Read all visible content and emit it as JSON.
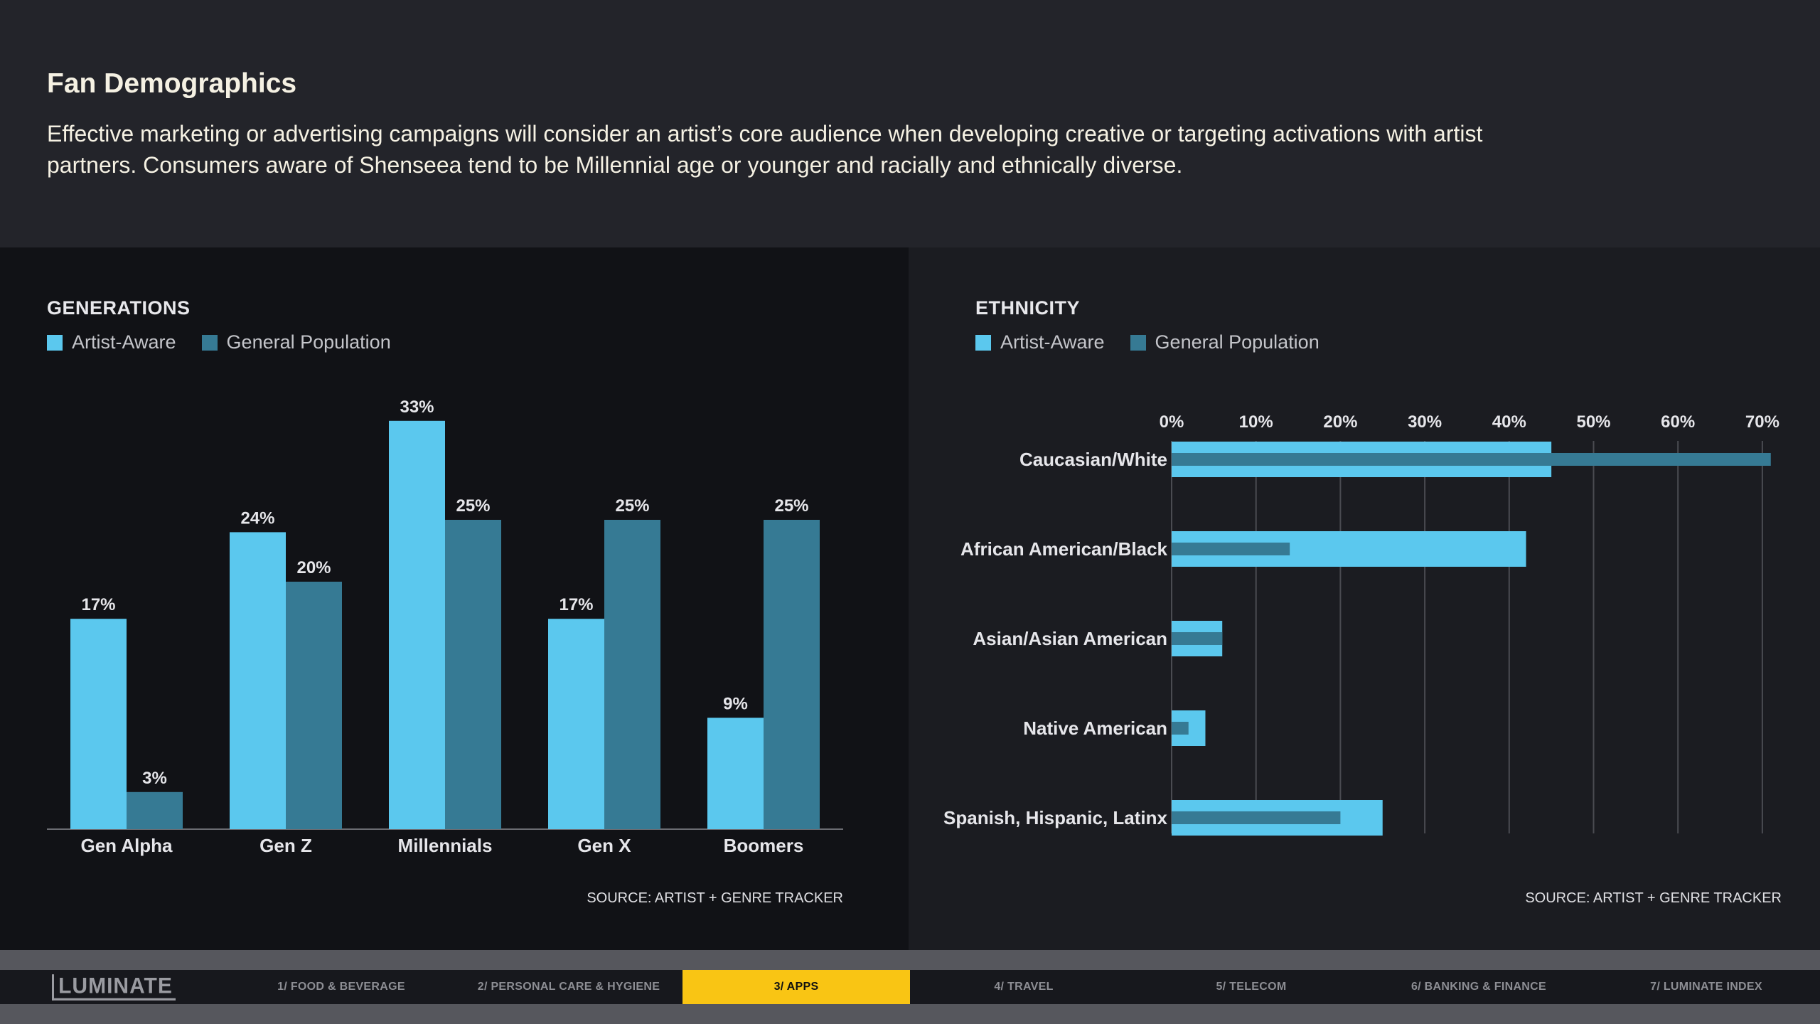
{
  "header": {
    "title": "Fan Demographics",
    "description": "Effective marketing or advertising campaigns will consider an artist’s core audience when developing creative or targeting activations with  artist partners. Consumers aware of Shenseea tend to be Millennial age or younger and racially and ethnically diverse."
  },
  "colors": {
    "artist_aware": "#5bc8ee",
    "general_population": "#367a94"
  },
  "generations": {
    "section_title": "GENERATIONS",
    "legend": [
      "Artist-Aware",
      "General Population"
    ],
    "source": "SOURCE: ARTIST + GENRE TRACKER"
  },
  "ethnicity": {
    "section_title": "ETHNICITY",
    "legend": [
      "Artist-Aware",
      "General Population"
    ],
    "source": "SOURCE: ARTIST + GENRE TRACKER"
  },
  "chart_data": [
    {
      "type": "bar",
      "title": "GENERATIONS",
      "categories": [
        "Gen Alpha",
        "Gen Z",
        "Millennials",
        "Gen X",
        "Boomers"
      ],
      "series": [
        {
          "name": "Artist-Aware",
          "values": [
            17,
            24,
            33,
            17,
            9
          ],
          "labels": [
            "17%",
            "24%",
            "33%",
            "17%",
            "9%"
          ]
        },
        {
          "name": "General Population",
          "values": [
            3,
            20,
            25,
            25,
            25
          ],
          "labels": [
            "3%",
            "20%",
            "25%",
            "25%",
            "25%"
          ]
        }
      ],
      "ylim": [
        0,
        33
      ],
      "grid": false,
      "legend": "top-left"
    },
    {
      "type": "bar",
      "orientation": "horizontal",
      "title": "ETHNICITY",
      "categories": [
        "Caucasian/White",
        "African American/Black",
        "Asian/Asian American",
        "Native American",
        "Spanish, Hispanic, Latinx"
      ],
      "series": [
        {
          "name": "Artist-Aware",
          "values": [
            45,
            42,
            6,
            4,
            25
          ]
        },
        {
          "name": "General Population",
          "values": [
            71,
            14,
            6,
            2,
            20
          ]
        }
      ],
      "xlim": [
        0,
        70
      ],
      "xticks": [
        "0%",
        "10%",
        "20%",
        "30%",
        "40%",
        "50%",
        "60%",
        "70%"
      ],
      "tick_values": [
        0,
        10,
        20,
        30,
        40,
        50,
        60,
        70
      ],
      "grid": true,
      "legend": "top-left"
    }
  ],
  "nav": {
    "logo": "LUMINATE",
    "tabs": [
      {
        "label": "1/ FOOD & BEVERAGE",
        "active": false
      },
      {
        "label": "2/ PERSONAL CARE & HYGIENE",
        "active": false
      },
      {
        "label": "3/ APPS",
        "active": true
      },
      {
        "label": "4/ TRAVEL",
        "active": false
      },
      {
        "label": "5/ TELECOM",
        "active": false
      },
      {
        "label": "6/ BANKING & FINANCE",
        "active": false
      },
      {
        "label": "7/ LUMINATE INDEX",
        "active": false
      }
    ]
  }
}
